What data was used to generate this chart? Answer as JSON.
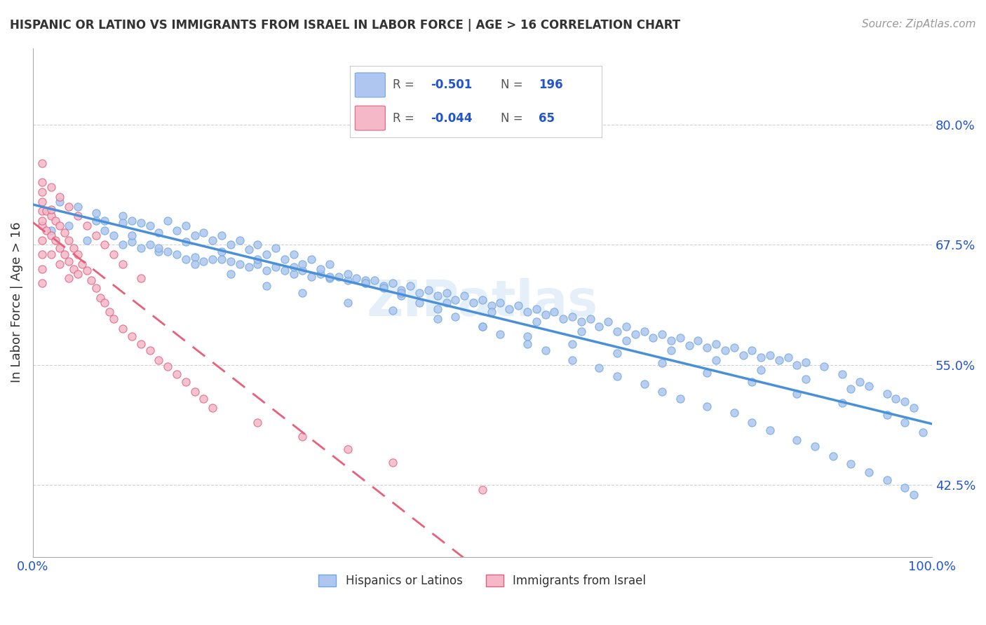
{
  "title": "HISPANIC OR LATINO VS IMMIGRANTS FROM ISRAEL IN LABOR FORCE | AGE > 16 CORRELATION CHART",
  "source": "Source: ZipAtlas.com",
  "ylabel": "In Labor Force | Age > 16",
  "xlim": [
    0,
    1.0
  ],
  "ylim": [
    0.35,
    0.88
  ],
  "yticks": [
    0.425,
    0.55,
    0.675,
    0.8
  ],
  "ytick_labels": [
    "42.5%",
    "55.0%",
    "67.5%",
    "80.0%"
  ],
  "xticks": [
    0.0,
    1.0
  ],
  "xtick_labels": [
    "0.0%",
    "100.0%"
  ],
  "series1_color": "#aec6f0",
  "series1_edge": "#6fa8dc",
  "series2_color": "#f4b8c8",
  "series2_edge": "#e06080",
  "trendline1_color": "#4a90d9",
  "trendline2_color": "#e8607a",
  "background_color": "#ffffff",
  "grid_color": "#cccccc",
  "watermark": "ZIPatlas",
  "blue_dots_x": [
    0.02,
    0.04,
    0.06,
    0.07,
    0.08,
    0.09,
    0.1,
    0.11,
    0.12,
    0.13,
    0.14,
    0.15,
    0.16,
    0.17,
    0.18,
    0.19,
    0.2,
    0.21,
    0.22,
    0.23,
    0.24,
    0.25,
    0.26,
    0.27,
    0.28,
    0.29,
    0.3,
    0.31,
    0.32,
    0.33,
    0.34,
    0.35,
    0.36,
    0.37,
    0.38,
    0.39,
    0.4,
    0.41,
    0.42,
    0.43,
    0.44,
    0.45,
    0.46,
    0.47,
    0.48,
    0.49,
    0.5,
    0.51,
    0.52,
    0.53,
    0.54,
    0.55,
    0.56,
    0.57,
    0.58,
    0.59,
    0.6,
    0.61,
    0.62,
    0.63,
    0.64,
    0.65,
    0.66,
    0.67,
    0.68,
    0.69,
    0.7,
    0.71,
    0.72,
    0.73,
    0.74,
    0.75,
    0.76,
    0.77,
    0.78,
    0.79,
    0.8,
    0.81,
    0.82,
    0.83,
    0.84,
    0.85,
    0.86,
    0.88,
    0.9,
    0.92,
    0.93,
    0.95,
    0.97,
    0.98,
    0.1,
    0.11,
    0.12,
    0.13,
    0.15,
    0.16,
    0.17,
    0.18,
    0.19,
    0.2,
    0.21,
    0.22,
    0.23,
    0.24,
    0.25,
    0.26,
    0.27,
    0.28,
    0.29,
    0.3,
    0.31,
    0.32,
    0.33,
    0.35,
    0.37,
    0.39,
    0.41,
    0.43,
    0.45,
    0.47,
    0.5,
    0.52,
    0.55,
    0.57,
    0.6,
    0.63,
    0.65,
    0.68,
    0.7,
    0.72,
    0.75,
    0.78,
    0.8,
    0.82,
    0.85,
    0.87,
    0.89,
    0.91,
    0.93,
    0.95,
    0.97,
    0.98,
    0.05,
    0.08,
    0.11,
    0.14,
    0.18,
    0.22,
    0.26,
    0.3,
    0.35,
    0.4,
    0.45,
    0.5,
    0.55,
    0.6,
    0.65,
    0.7,
    0.75,
    0.8,
    0.85,
    0.9,
    0.95,
    0.97,
    0.99,
    0.03,
    0.07,
    0.1,
    0.14,
    0.17,
    0.21,
    0.25,
    0.29,
    0.33,
    0.37,
    0.41,
    0.46,
    0.51,
    0.56,
    0.61,
    0.66,
    0.71,
    0.76,
    0.81,
    0.86,
    0.91,
    0.96
  ],
  "blue_dots_y": [
    0.69,
    0.695,
    0.68,
    0.7,
    0.69,
    0.685,
    0.675,
    0.678,
    0.672,
    0.675,
    0.668,
    0.668,
    0.665,
    0.66,
    0.662,
    0.658,
    0.66,
    0.66,
    0.658,
    0.655,
    0.652,
    0.655,
    0.648,
    0.652,
    0.648,
    0.645,
    0.648,
    0.642,
    0.645,
    0.64,
    0.642,
    0.638,
    0.64,
    0.635,
    0.638,
    0.632,
    0.635,
    0.628,
    0.632,
    0.625,
    0.628,
    0.622,
    0.625,
    0.618,
    0.622,
    0.615,
    0.618,
    0.612,
    0.615,
    0.608,
    0.612,
    0.605,
    0.608,
    0.602,
    0.605,
    0.598,
    0.6,
    0.595,
    0.598,
    0.59,
    0.595,
    0.585,
    0.59,
    0.582,
    0.585,
    0.578,
    0.582,
    0.575,
    0.578,
    0.57,
    0.575,
    0.568,
    0.572,
    0.565,
    0.568,
    0.56,
    0.565,
    0.558,
    0.56,
    0.555,
    0.558,
    0.55,
    0.553,
    0.548,
    0.54,
    0.532,
    0.528,
    0.52,
    0.512,
    0.505,
    0.705,
    0.7,
    0.698,
    0.695,
    0.7,
    0.69,
    0.695,
    0.685,
    0.688,
    0.68,
    0.685,
    0.675,
    0.68,
    0.67,
    0.675,
    0.665,
    0.672,
    0.66,
    0.665,
    0.655,
    0.66,
    0.65,
    0.655,
    0.645,
    0.638,
    0.63,
    0.622,
    0.615,
    0.608,
    0.6,
    0.59,
    0.582,
    0.572,
    0.565,
    0.555,
    0.547,
    0.538,
    0.53,
    0.522,
    0.515,
    0.507,
    0.5,
    0.49,
    0.482,
    0.472,
    0.465,
    0.455,
    0.447,
    0.438,
    0.43,
    0.422,
    0.415,
    0.715,
    0.7,
    0.685,
    0.672,
    0.655,
    0.645,
    0.632,
    0.625,
    0.615,
    0.607,
    0.598,
    0.59,
    0.58,
    0.572,
    0.562,
    0.552,
    0.542,
    0.532,
    0.52,
    0.51,
    0.498,
    0.49,
    0.48,
    0.72,
    0.708,
    0.698,
    0.688,
    0.678,
    0.668,
    0.66,
    0.652,
    0.642,
    0.635,
    0.625,
    0.615,
    0.605,
    0.595,
    0.585,
    0.575,
    0.565,
    0.555,
    0.545,
    0.535,
    0.525,
    0.515
  ],
  "pink_dots_x": [
    0.01,
    0.01,
    0.01,
    0.01,
    0.01,
    0.01,
    0.01,
    0.015,
    0.015,
    0.02,
    0.02,
    0.02,
    0.025,
    0.025,
    0.03,
    0.03,
    0.03,
    0.035,
    0.035,
    0.04,
    0.04,
    0.04,
    0.045,
    0.045,
    0.05,
    0.05,
    0.055,
    0.06,
    0.065,
    0.07,
    0.075,
    0.08,
    0.085,
    0.09,
    0.1,
    0.11,
    0.12,
    0.13,
    0.14,
    0.15,
    0.16,
    0.17,
    0.18,
    0.19,
    0.2,
    0.25,
    0.3,
    0.35,
    0.4,
    0.5,
    0.01,
    0.01,
    0.01,
    0.01,
    0.02,
    0.02,
    0.03,
    0.04,
    0.05,
    0.06,
    0.07,
    0.08,
    0.09,
    0.1,
    0.12
  ],
  "pink_dots_y": [
    0.73,
    0.71,
    0.695,
    0.68,
    0.665,
    0.65,
    0.635,
    0.71,
    0.69,
    0.705,
    0.685,
    0.665,
    0.7,
    0.68,
    0.695,
    0.672,
    0.655,
    0.688,
    0.665,
    0.68,
    0.658,
    0.64,
    0.672,
    0.65,
    0.665,
    0.645,
    0.655,
    0.648,
    0.638,
    0.63,
    0.62,
    0.615,
    0.605,
    0.598,
    0.588,
    0.58,
    0.572,
    0.565,
    0.555,
    0.548,
    0.54,
    0.532,
    0.522,
    0.515,
    0.505,
    0.49,
    0.475,
    0.462,
    0.448,
    0.42,
    0.76,
    0.74,
    0.72,
    0.7,
    0.735,
    0.712,
    0.725,
    0.715,
    0.705,
    0.695,
    0.685,
    0.675,
    0.665,
    0.655,
    0.64
  ]
}
